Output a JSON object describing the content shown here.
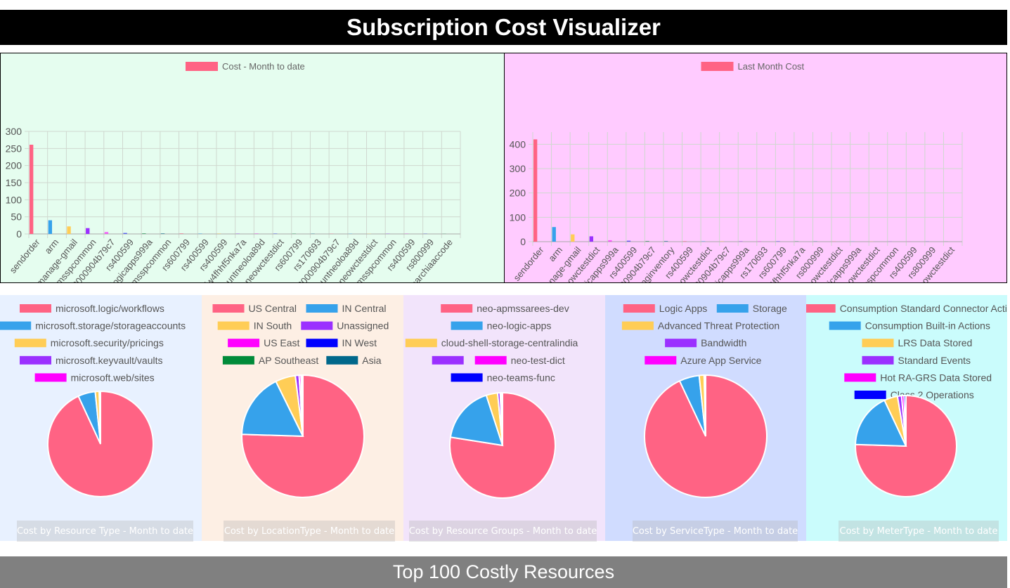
{
  "page": {
    "title": "Subscription Cost Visualizer",
    "footer_title": "Top 100 Costly Resources"
  },
  "palette": [
    "#ff6384",
    "#36a2eb",
    "#ffcd56",
    "#9b30ff",
    "#ff00ff",
    "#0000ff",
    "#008b3a",
    "#00688b"
  ],
  "chart_data": [
    {
      "type": "bar",
      "legend": "Cost - Month to date",
      "background": "#e5fdef",
      "ylim": [
        0,
        300
      ],
      "yticks": [
        0,
        50,
        100,
        150,
        200,
        250,
        300
      ],
      "grid": true,
      "categories": [
        "sendorder",
        "arm",
        "neo-manage-gmail",
        "apmsspcommon",
        "csg1003000904b79c7",
        "rs400599",
        "neologicapps999a",
        "apmsspcommon",
        "rs600799",
        "rs400599",
        "rs400599",
        "sqlvafw4fhhf5nka7a",
        "storageaccountneoloa89d",
        "neowctestdict",
        "rs600799",
        "rs170693",
        "csg1003000904b79c7",
        "storageaccountneoloa89d",
        "neowctestdict",
        "apmsspcommon",
        "rs400599",
        "rs800999",
        "searchiaaccode"
      ],
      "values": [
        261,
        40,
        22,
        17,
        6,
        3,
        2,
        2,
        2,
        1.5,
        1.5,
        1.2,
        1.2,
        1,
        1,
        1,
        1,
        1,
        1,
        1,
        0.8,
        0.6,
        0.5
      ]
    },
    {
      "type": "bar",
      "legend": "Last Month Cost",
      "background": "#ffcbff",
      "ylim": [
        0,
        450
      ],
      "yticks": [
        0,
        100,
        200,
        300,
        400
      ],
      "grid": true,
      "categories": [
        "sendorder",
        "arm",
        "neo-manage-gmail",
        "neowctestdict",
        "neologicapps999a",
        "rs400599",
        "csg1003000904b79c7",
        "upcominginventory",
        "rs400599",
        "neowctestdict",
        "csg1003000904b79c7",
        "neologicapps999a",
        "rs170693",
        "rs600799",
        "sqlvafw4fhhf5nka7a",
        "rs800999",
        "neowctestdict",
        "neologicapps999a",
        "neowctestdict",
        "apmsspcommon",
        "rs400599",
        "rs800999",
        "neowctestdict"
      ],
      "values": [
        420,
        60,
        30,
        22,
        6,
        4,
        3,
        3,
        2.5,
        2,
        2,
        2,
        1.5,
        1.5,
        1.5,
        1.2,
        1.2,
        1,
        1,
        1,
        0.8,
        0.6,
        0.5
      ]
    },
    {
      "type": "pie",
      "caption": "Cost by Resource Type - Month to date",
      "background": "#e8f1ff",
      "legend": [
        [
          "microsoft.logic/workflows"
        ],
        [
          "microsoft.storage/storageaccounts"
        ],
        [
          "microsoft.security/pricings"
        ],
        [
          "microsoft.keyvault/vaults"
        ],
        [
          "microsoft.web/sites"
        ]
      ],
      "labels": [
        "microsoft.logic/workflows",
        "microsoft.storage/storageaccounts",
        "microsoft.security/pricings",
        "microsoft.keyvault/vaults",
        "microsoft.web/sites"
      ],
      "values": [
        93.1,
        5.3,
        1.2,
        0.25,
        0.15
      ]
    },
    {
      "type": "pie",
      "caption": "Cost by LocationType - Month to date",
      "background": "#fdefe4",
      "legend": [
        [
          "US Central",
          "IN Central"
        ],
        [
          "IN South",
          "Unassigned"
        ],
        [
          "US East",
          "IN West"
        ],
        [
          "AP Southeast",
          "Asia"
        ]
      ],
      "labels": [
        "US Central",
        "IN Central",
        "IN South",
        "Unassigned",
        "US East",
        "IN West",
        "AP Southeast",
        "Asia"
      ],
      "values": [
        75.5,
        17.2,
        5.3,
        1.0,
        0.5,
        0.3,
        0.1,
        0.1
      ]
    },
    {
      "type": "pie",
      "caption": "Cost by Resource Groups - Month to date",
      "background": "#f2e4fb",
      "legend": [
        [
          "neo-apmssarees-dev"
        ],
        [
          "neo-logic-apps"
        ],
        [
          "cloud-shell-storage-centralindia"
        ],
        [
          "",
          "neo-test-dict"
        ],
        [
          "neo-teams-func"
        ]
      ],
      "labels": [
        "neo-apmssarees-dev",
        "neo-logic-apps",
        "cloud-shell-storage-centralindia",
        "",
        "neo-test-dict",
        "neo-teams-func"
      ],
      "values": [
        77.5,
        17.5,
        3.5,
        0.8,
        0.4,
        0.3
      ]
    },
    {
      "type": "pie",
      "caption": "Cost by ServiceType - Month to date",
      "background": "#d0dcff",
      "legend": [
        [
          "Logic Apps",
          "Storage"
        ],
        [
          "Advanced Threat Protection"
        ],
        [
          "Bandwidth"
        ],
        [
          "Azure App Service"
        ]
      ],
      "labels": [
        "Logic Apps",
        "Storage",
        "Advanced Threat Protection",
        "Bandwidth",
        "Azure App Service"
      ],
      "values": [
        93.0,
        5.3,
        1.3,
        0.25,
        0.15
      ]
    },
    {
      "type": "pie",
      "caption": "Cost by MeterType - Month to date",
      "background": "#cafcfc",
      "legend": [
        [
          "Consumption Standard Connector Actions"
        ],
        [
          "Consumption Built-in Actions"
        ],
        [
          "LRS Data Stored"
        ],
        [
          "Standard Events"
        ],
        [
          "Hot RA-GRS Data Stored"
        ],
        [
          "Class 2 Operations"
        ]
      ],
      "labels": [
        "Consumption Standard Connector Actions",
        "Consumption Built-in Actions",
        "LRS Data Stored",
        "Standard Events",
        "Hot RA-GRS Data Stored",
        "Class 2 Operations"
      ],
      "values": [
        75.5,
        17.5,
        4.3,
        1.3,
        0.8,
        0.6
      ]
    }
  ]
}
